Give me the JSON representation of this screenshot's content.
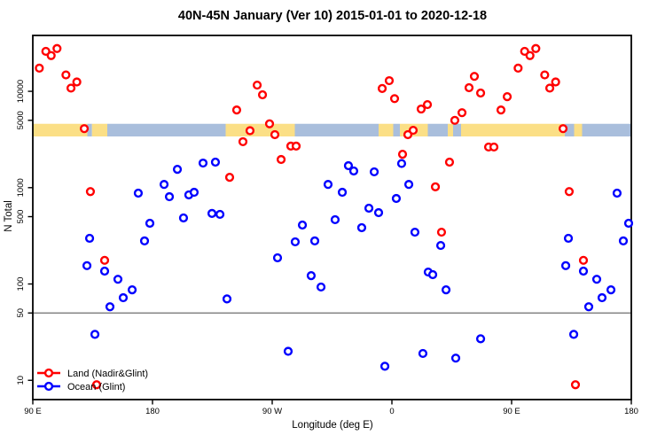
{
  "title": "40N-45N January (Ver 10)  2015-01-01 to 2020-12-18",
  "legend": {
    "items": [
      {
        "label": "Land (Nadir&Glint)",
        "color": "#ff0000"
      },
      {
        "label": "Ocean (Glint)",
        "color": "#0000ff"
      }
    ]
  },
  "chart_data": {
    "type": "scatter",
    "title": "40N-45N January (Ver 10)  2015-01-01 to 2020-12-18",
    "xlabel": "Longitude (deg E)",
    "ylabel": "N Total",
    "x_axis": {
      "note": "longitude axis spans 450 deg starting at 90E; the 90E-180 band is drawn twice",
      "axis_positions": [
        90,
        180,
        270,
        360,
        450,
        540
      ],
      "tick_labels": [
        "90 E",
        "180",
        "90 W",
        "0",
        "90 E",
        "180"
      ]
    },
    "y_axis": {
      "scale": "log",
      "ticks": [
        10000,
        5000,
        1000,
        500,
        100,
        50,
        10
      ],
      "tick_labels": [
        "10000",
        "5000",
        "1000",
        "500",
        "100",
        "50",
        "10"
      ],
      "log_range": [
        0.8,
        4.58
      ]
    },
    "reference_line_n": 50,
    "map_strip": {
      "n_range": [
        3400,
        4600
      ],
      "land_color": "#fbdf86",
      "ocean_color": "#a9bedc",
      "segments": [
        {
          "a0": 90,
          "a1": 131,
          "type": "land"
        },
        {
          "a0": 131,
          "a1": 134.5,
          "type": "ocean"
        },
        {
          "a0": 134.5,
          "a1": 146,
          "type": "land"
        },
        {
          "a0": 146,
          "a1": 235,
          "type": "ocean"
        },
        {
          "a0": 235,
          "a1": 287,
          "type": "land"
        },
        {
          "a0": 287,
          "a1": 350,
          "type": "ocean"
        },
        {
          "a0": 350,
          "a1": 361,
          "type": "land"
        },
        {
          "a0": 361,
          "a1": 366,
          "type": "ocean"
        },
        {
          "a0": 366,
          "a1": 387,
          "type": "land"
        },
        {
          "a0": 387,
          "a1": 402,
          "type": "ocean"
        },
        {
          "a0": 402,
          "a1": 406,
          "type": "land"
        },
        {
          "a0": 406,
          "a1": 412,
          "type": "ocean"
        },
        {
          "a0": 412,
          "a1": 490,
          "type": "land"
        },
        {
          "a0": 490,
          "a1": 497,
          "type": "ocean"
        },
        {
          "a0": 497,
          "a1": 503,
          "type": "land"
        },
        {
          "a0": 503,
          "a1": 540,
          "type": "ocean"
        }
      ]
    },
    "series": [
      {
        "name": "Land (Nadir&Glint)",
        "color": "#ff0000",
        "points_lon_n": [
          [
            94.9,
            17400
          ],
          [
            99.8,
            26000
          ],
          [
            103.8,
            23500
          ],
          [
            108.2,
            27800
          ],
          [
            114.9,
            14800
          ],
          [
            123.1,
            12500
          ],
          [
            118.7,
            10800
          ],
          [
            128.7,
            4100
          ],
          [
            133.3,
            910
          ],
          [
            138,
            9
          ],
          [
            144,
            176
          ],
          [
            -116.7,
            6400
          ],
          [
            -101.3,
            11600
          ],
          [
            -97.3,
            9200
          ],
          [
            -92,
            4600
          ],
          [
            -106.7,
            3900
          ],
          [
            -112,
            3000
          ],
          [
            -88,
            3550
          ],
          [
            -76,
            2700
          ],
          [
            -72,
            2700
          ],
          [
            -83.3,
            1960
          ],
          [
            -122,
            1280
          ],
          [
            -7.3,
            10700
          ],
          [
            -2,
            12900
          ],
          [
            2,
            8400
          ],
          [
            22,
            6550
          ],
          [
            26.7,
            7280
          ],
          [
            47.3,
            5000
          ],
          [
            52.7,
            6000
          ],
          [
            62,
            14300
          ],
          [
            58,
            10900
          ],
          [
            66.7,
            9600
          ],
          [
            82,
            6400
          ],
          [
            86.7,
            8800
          ],
          [
            12,
            3550
          ],
          [
            16,
            3940
          ],
          [
            72.7,
            2640
          ],
          [
            76.7,
            2640
          ],
          [
            8,
            2220
          ],
          [
            43.3,
            1840
          ],
          [
            32.7,
            1020
          ],
          [
            37.3,
            345
          ]
        ]
      },
      {
        "name": "Ocean (Glint)",
        "color": "#0000ff",
        "points_lon_n": [
          [
            -161.3,
            1550
          ],
          [
            -142,
            1800
          ],
          [
            -132.7,
            1840
          ],
          [
            -171.3,
            1080
          ],
          [
            -167.3,
            805
          ],
          [
            169.3,
            877
          ],
          [
            -152.7,
            841
          ],
          [
            -148.7,
            895
          ],
          [
            -135.3,
            540
          ],
          [
            -129.3,
            528
          ],
          [
            -156.7,
            485
          ],
          [
            -48,
            1080
          ],
          [
            -37.3,
            895
          ],
          [
            178,
            427
          ],
          [
            -32.7,
            1690
          ],
          [
            -28.7,
            1490
          ],
          [
            -13.3,
            1460
          ],
          [
            7.3,
            1780
          ],
          [
            12.7,
            1080
          ],
          [
            3.3,
            772
          ],
          [
            -17.3,
            612
          ],
          [
            -10,
            550
          ],
          [
            132.7,
            298
          ],
          [
            130.7,
            155
          ],
          [
            144,
            136
          ],
          [
            154,
            112
          ],
          [
            148,
            58
          ],
          [
            158,
            72
          ],
          [
            164.7,
            87
          ],
          [
            174,
            280
          ],
          [
            136.7,
            30
          ],
          [
            -124,
            70
          ],
          [
            -86,
            187
          ],
          [
            -78,
            20
          ],
          [
            -72.7,
            274
          ],
          [
            -67.3,
            409
          ],
          [
            -58,
            280
          ],
          [
            -60.7,
            122
          ],
          [
            -53.3,
            93
          ],
          [
            -42.7,
            465
          ],
          [
            -22.7,
            384
          ],
          [
            17.3,
            345
          ],
          [
            36.7,
            251
          ],
          [
            27.3,
            133
          ],
          [
            30.7,
            125
          ],
          [
            40.7,
            87
          ],
          [
            -5.3,
            14
          ],
          [
            23.3,
            19
          ],
          [
            48,
            17
          ],
          [
            66.7,
            27
          ]
        ]
      }
    ]
  }
}
